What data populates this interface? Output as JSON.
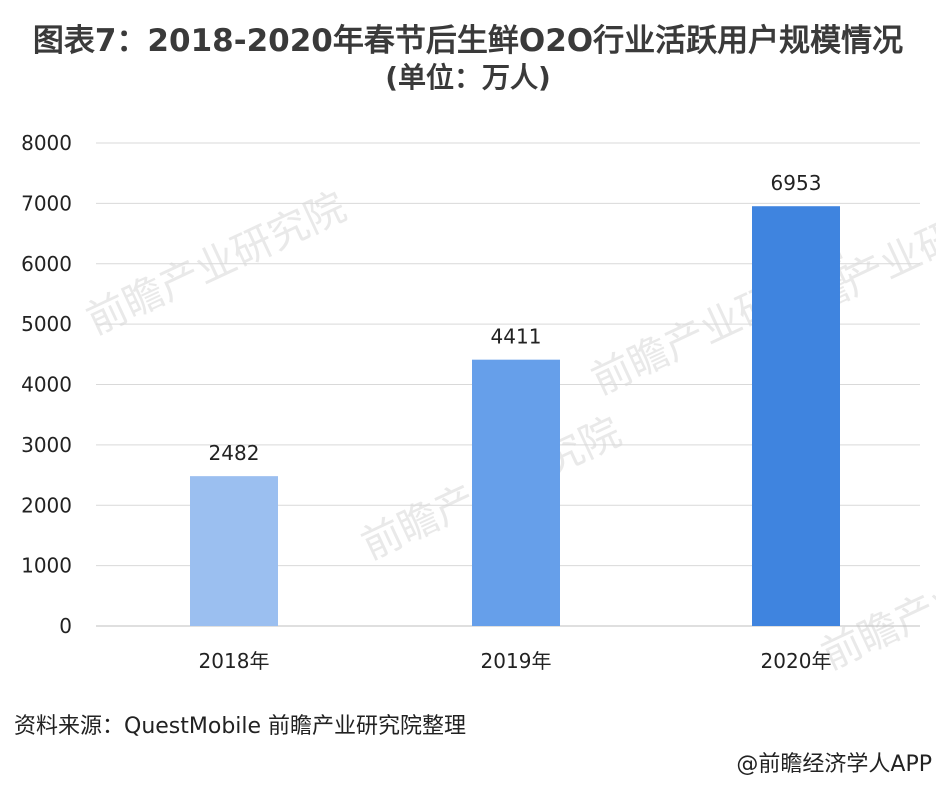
{
  "title": "图表7：2018-2020年春节后生鲜O2O行业活跃用户规模情况",
  "subtitle": "(单位：万人)",
  "chart_data": {
    "type": "bar",
    "categories": [
      "2018年",
      "2019年",
      "2020年"
    ],
    "values": [
      2482,
      4411,
      6953
    ],
    "data_labels": [
      "2482",
      "4411",
      "6953"
    ],
    "ylim": [
      0,
      8000
    ],
    "yticks": [
      "0",
      "1000",
      "2000",
      "3000",
      "4000",
      "5000",
      "6000",
      "7000",
      "8000"
    ],
    "grid": true,
    "legend": "none",
    "bar_colors": [
      "#9bbff0",
      "#669fea",
      "#3f84df"
    ]
  },
  "source_text": "资料来源：QuestMobile   前瞻产业研究院整理",
  "credit_text": "@前瞻经济学人APP",
  "watermark_text": "前瞻产业研究院"
}
